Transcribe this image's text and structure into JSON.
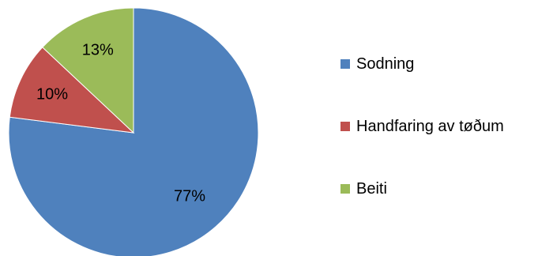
{
  "chart_data": {
    "type": "pie",
    "title": "",
    "legend_position": "right",
    "slices": [
      {
        "label": "Sodning",
        "value": 77,
        "display": "77%",
        "color": "#4F81BD"
      },
      {
        "label": "Handfaring av tøðum",
        "value": 10,
        "display": "10%",
        "color": "#C0504D"
      },
      {
        "label": "Beiti",
        "value": 13,
        "display": "13%",
        "color": "#9BBB59"
      }
    ]
  }
}
